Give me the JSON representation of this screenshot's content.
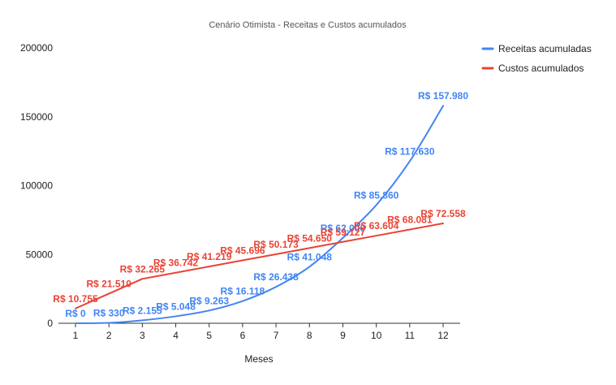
{
  "chart_data": {
    "type": "line",
    "title": "Cenário Otimista - Receitas e Custos acumulados",
    "xlabel": "Meses",
    "ylabel": "",
    "categories": [
      "1",
      "2",
      "3",
      "4",
      "5",
      "6",
      "7",
      "8",
      "9",
      "10",
      "11",
      "12"
    ],
    "ylim": [
      0,
      200000
    ],
    "yticks": [
      0,
      50000,
      100000,
      150000,
      200000
    ],
    "ytick_labels": [
      "0",
      "50000",
      "100000",
      "150000",
      "200000"
    ],
    "grid": false,
    "legend_position": "right",
    "series": [
      {
        "name": "Receitas acumuladas",
        "color": "#4285F4",
        "values": [
          0,
          330,
          2155,
          5048,
          9263,
          16118,
          26438,
          41048,
          62000,
          85860,
          117630,
          157980
        ],
        "labels": [
          "R$ 0",
          "R$ 330",
          "R$ 2.155",
          "R$ 5.048",
          "R$ 9.263",
          "R$ 16.118",
          "R$ 26.438",
          "R$ 41.048",
          "R$ 62.000",
          "R$ 85.860",
          "R$ 117.630",
          "R$ 157.980"
        ]
      },
      {
        "name": "Custos acumulados",
        "color": "#EA4335",
        "values": [
          10755,
          21510,
          32265,
          36742,
          41219,
          45696,
          50173,
          54650,
          59127,
          63604,
          68081,
          72558
        ],
        "labels": [
          "R$ 10.755",
          "R$ 21.510",
          "R$ 32.265",
          "R$ 36.742",
          "R$ 41.219",
          "R$ 45.696",
          "R$ 50.173",
          "R$ 54.650",
          "R$ 59.127",
          "R$ 63.604",
          "R$ 68.081",
          "R$ 72.558"
        ]
      }
    ]
  }
}
